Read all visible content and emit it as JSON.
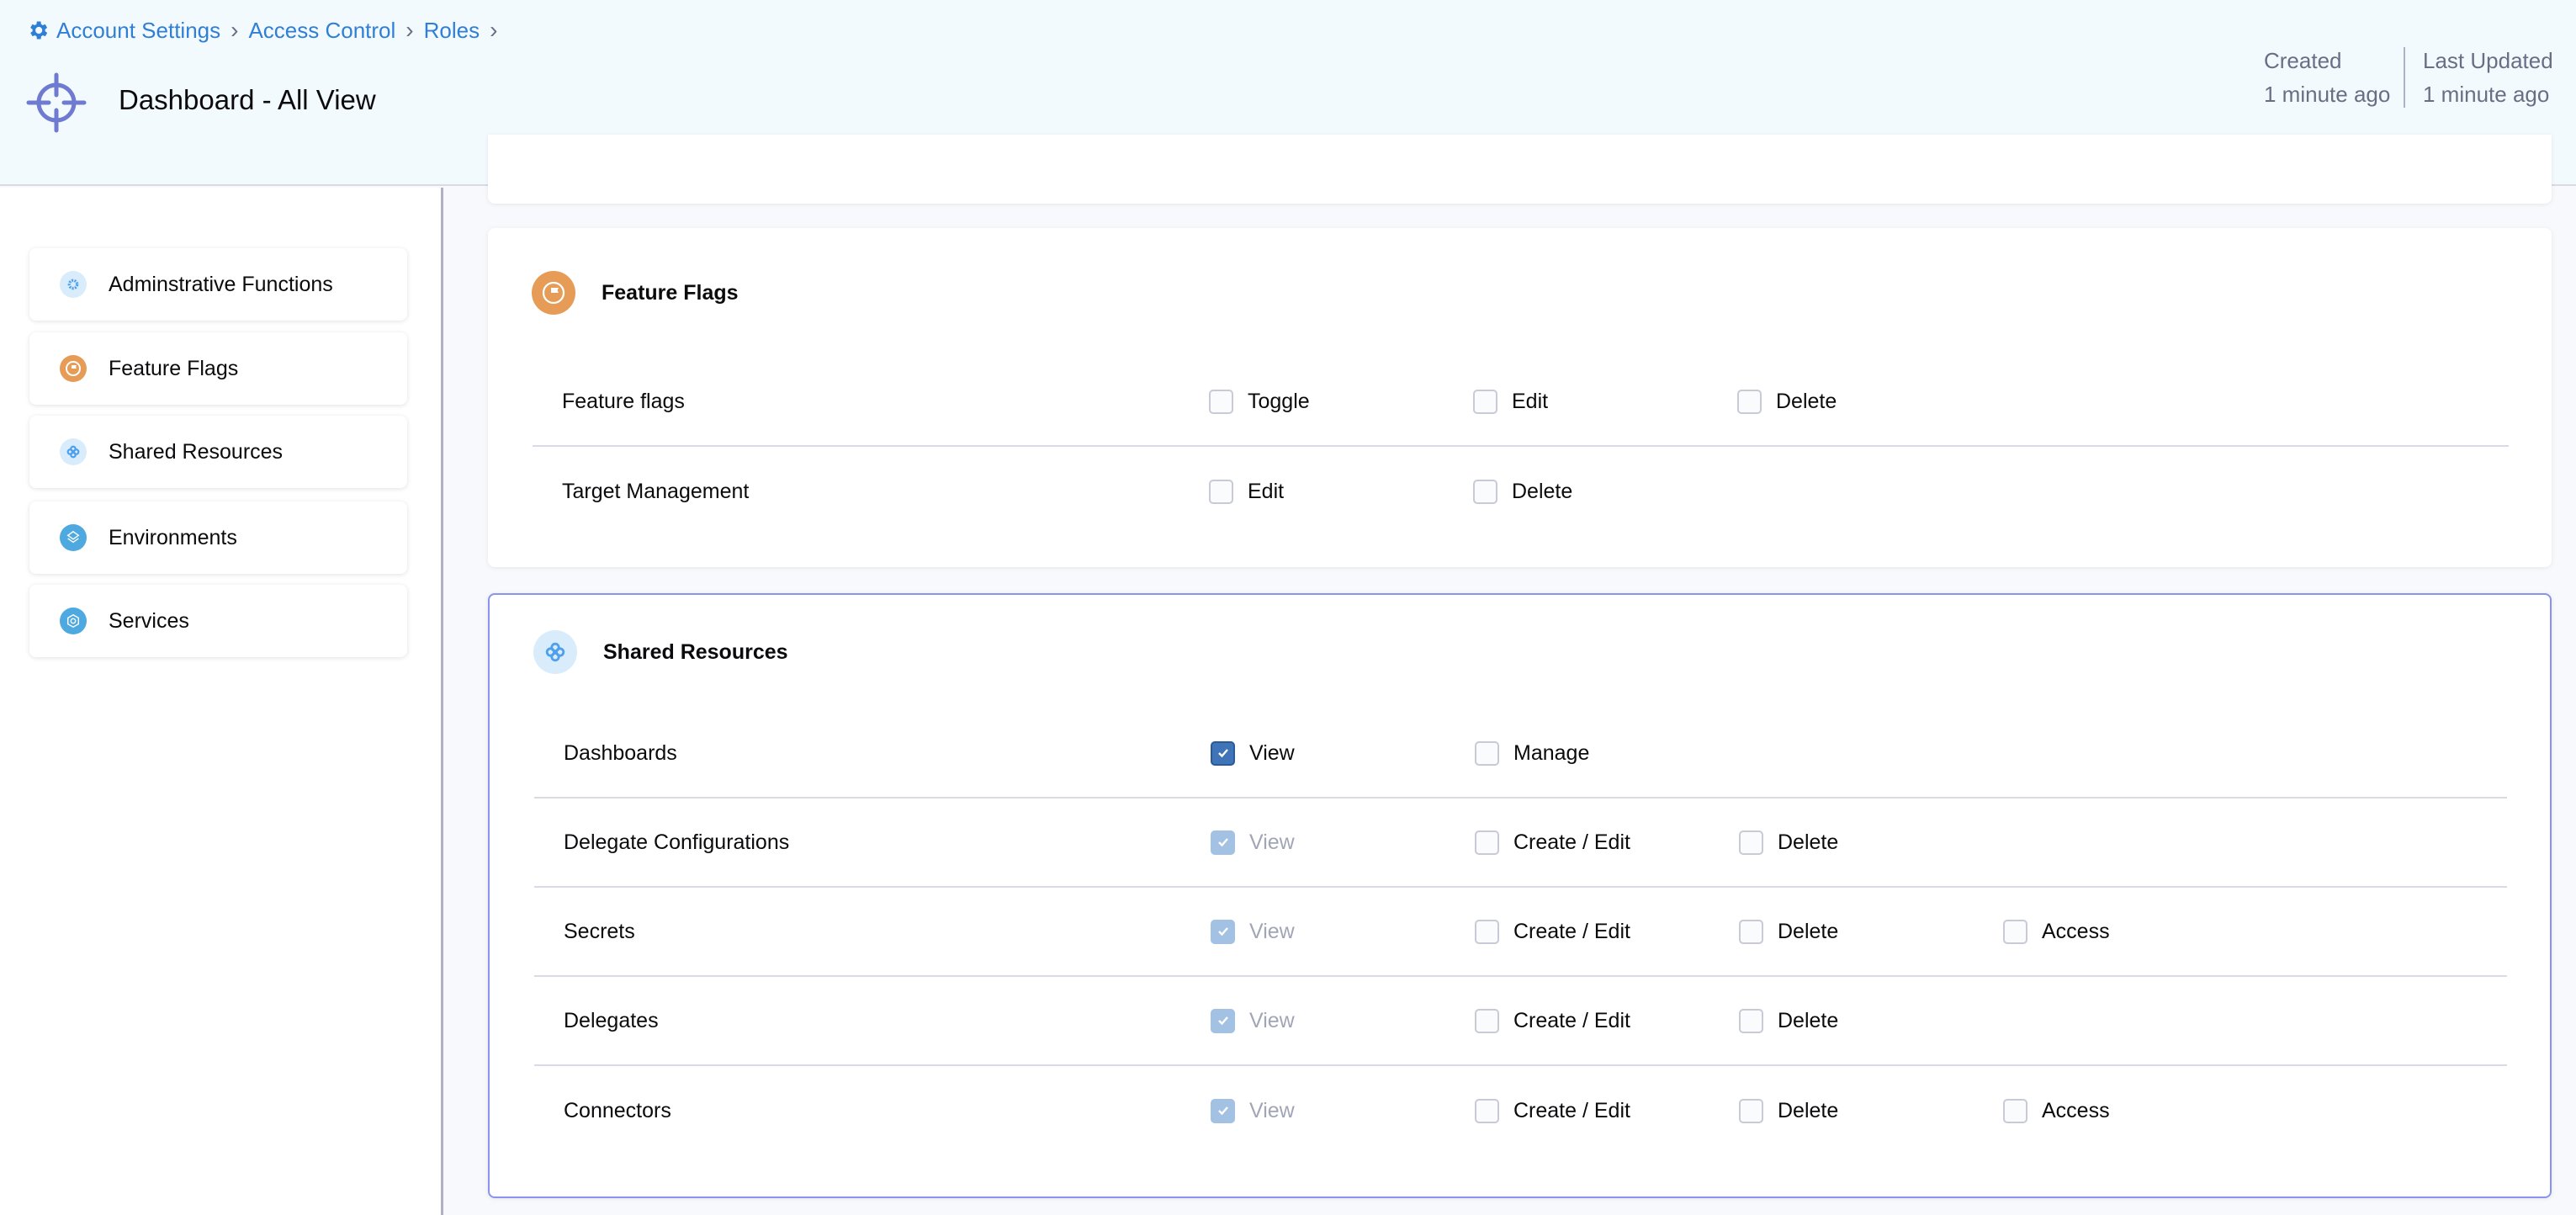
{
  "breadcrumb": [
    "Account Settings",
    "Access Control",
    "Roles"
  ],
  "header": {
    "title": "Dashboard - All View",
    "created_label": "Created",
    "created_value": "1 minute ago",
    "updated_label": "Last Updated",
    "updated_value": "1 minute ago"
  },
  "sidebar": {
    "items": [
      {
        "label": "Adminstrative Functions",
        "icon": "gear-icon"
      },
      {
        "label": "Feature Flags",
        "icon": "flag-icon"
      },
      {
        "label": "Shared Resources",
        "icon": "shared-resources-icon"
      },
      {
        "label": "Environments",
        "icon": "environments-icon"
      },
      {
        "label": "Services",
        "icon": "services-icon"
      }
    ]
  },
  "feature_flags": {
    "title": "Feature Flags",
    "rows": [
      {
        "label": "Feature flags",
        "perms": [
          {
            "label": "Toggle",
            "state": "unchecked"
          },
          {
            "label": "Edit",
            "state": "unchecked"
          },
          {
            "label": "Delete",
            "state": "unchecked"
          }
        ]
      },
      {
        "label": "Target Management",
        "perms": [
          {
            "label": "Edit",
            "state": "unchecked"
          },
          {
            "label": "Delete",
            "state": "unchecked"
          }
        ]
      }
    ]
  },
  "shared_resources": {
    "title": "Shared Resources",
    "rows": [
      {
        "label": "Dashboards",
        "perms": [
          {
            "label": "View",
            "state": "checked"
          },
          {
            "label": "Manage",
            "state": "unchecked"
          }
        ]
      },
      {
        "label": "Delegate Configurations",
        "perms": [
          {
            "label": "View",
            "state": "checked-disabled"
          },
          {
            "label": "Create / Edit",
            "state": "unchecked"
          },
          {
            "label": "Delete",
            "state": "unchecked"
          }
        ]
      },
      {
        "label": "Secrets",
        "perms": [
          {
            "label": "View",
            "state": "checked-disabled"
          },
          {
            "label": "Create / Edit",
            "state": "unchecked"
          },
          {
            "label": "Delete",
            "state": "unchecked"
          },
          {
            "label": "Access",
            "state": "unchecked"
          }
        ]
      },
      {
        "label": "Delegates",
        "perms": [
          {
            "label": "View",
            "state": "checked-disabled"
          },
          {
            "label": "Create / Edit",
            "state": "unchecked"
          },
          {
            "label": "Delete",
            "state": "unchecked"
          }
        ]
      },
      {
        "label": "Connectors",
        "perms": [
          {
            "label": "View",
            "state": "checked-disabled"
          },
          {
            "label": "Create / Edit",
            "state": "unchecked"
          },
          {
            "label": "Delete",
            "state": "unchecked"
          },
          {
            "label": "Access",
            "state": "unchecked"
          }
        ]
      }
    ]
  },
  "colors": {
    "accent": "#2f7fd6",
    "feature_flags": "#e69b56",
    "shared": "#d9ecfb",
    "env": "#4ea9e0",
    "checked": "#3f74b8",
    "active_border": "#8a93ef"
  }
}
